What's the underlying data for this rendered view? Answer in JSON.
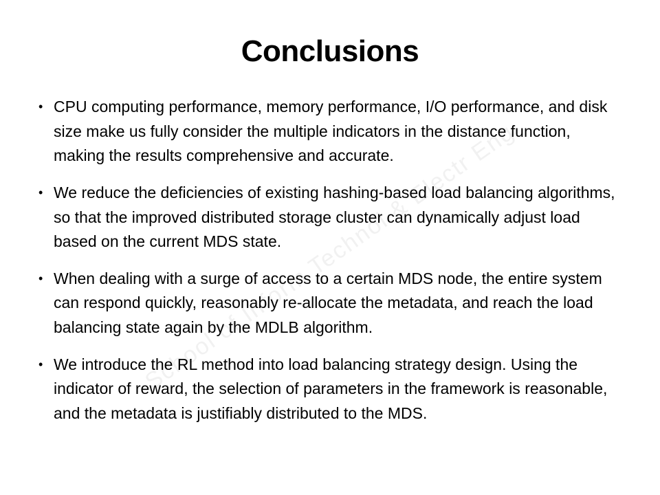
{
  "slide": {
    "title": "Conclusions",
    "title_fontsize": 44,
    "title_weight": 700,
    "body_fontsize": 23,
    "body_line_height": 1.55,
    "background_color": "#ffffff",
    "text_color": "#000000",
    "bullets": [
      "CPU computing performance, memory performance, I/O performance, and disk size make us fully consider the multiple indicators in the distance function, making the results comprehensive and accurate.",
      "We reduce the deficiencies of existing hashing-based load balancing algorithms, so that the improved distributed storage cluster can dynamically adjust load based on the current MDS state.",
      "When dealing with a surge of access to a certain MDS node, the entire system can respond quickly, reasonably  re-allocate the metadata, and reach the load balancing state again by the MDLB algorithm.",
      "We introduce the RL method into load balancing strategy design. Using the indicator of reward, the selection of parameters in the framework is reasonable, and the metadata is justifiably distributed to the MDS."
    ],
    "watermark": {
      "text": "School of Inform   Technol & Electr Eng",
      "color": "rgba(120,120,120,0.10)",
      "fontsize": 34,
      "rotation_deg": -35
    }
  }
}
